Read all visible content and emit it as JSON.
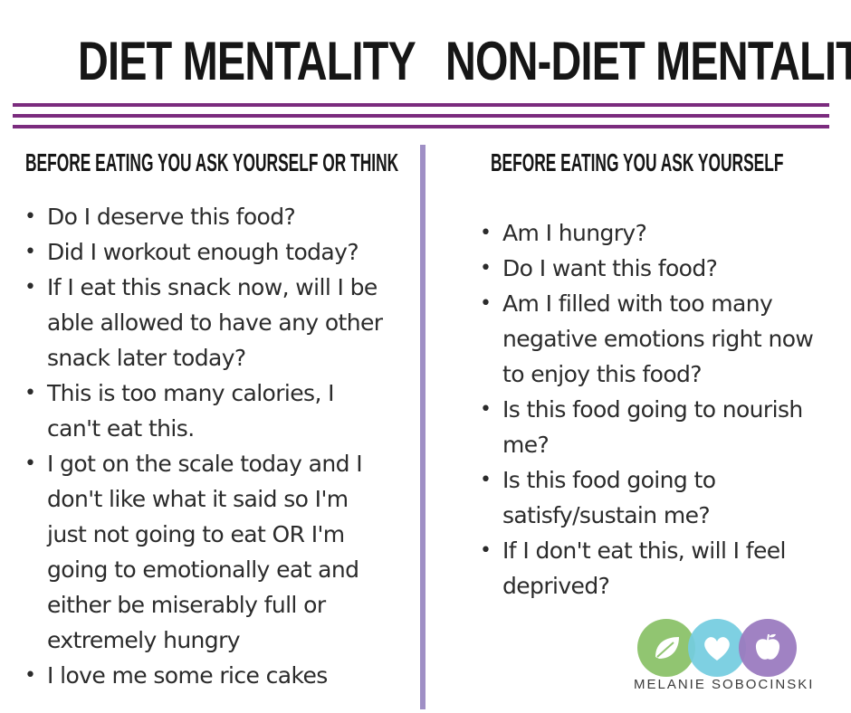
{
  "left": {
    "title": "DIET MENTALITY",
    "subhead": "BEFORE EATING YOU ASK YOURSELF OR THINK",
    "items": [
      "Do I deserve this food?",
      "Did I workout enough today?",
      "If I eat this snack now, will I be able allowed to have any other snack later today?",
      "This is too many calories, I can't eat this.",
      "I got on the scale today and I don't like what it said so I'm just not going to eat OR I'm going to emotionally eat and either be miserably full or extremely hungry",
      "I love me some rice cakes"
    ]
  },
  "right": {
    "title": "NON-DIET MENTALITY",
    "subhead": "BEFORE EATING YOU ASK YOURSELF",
    "items": [
      "Am I hungry?",
      "Do I want this food?",
      "Am I filled with too many negative emotions right now to enjoy this food?",
      "Is this food going to nourish me?",
      "Is this food going to satisfy/sustain me?",
      "If I don't eat this, will I feel deprived?"
    ]
  },
  "brand": {
    "name": "MELANIE SOBOCINSKI",
    "icons": [
      "leaf-icon",
      "heart-icon",
      "apple-icon"
    ]
  },
  "colors": {
    "rule": "#7b2c7e",
    "divider": "#9f8fc5",
    "green": "#8cc26a",
    "blue": "#74cde0",
    "purple": "#9b7cc0"
  }
}
